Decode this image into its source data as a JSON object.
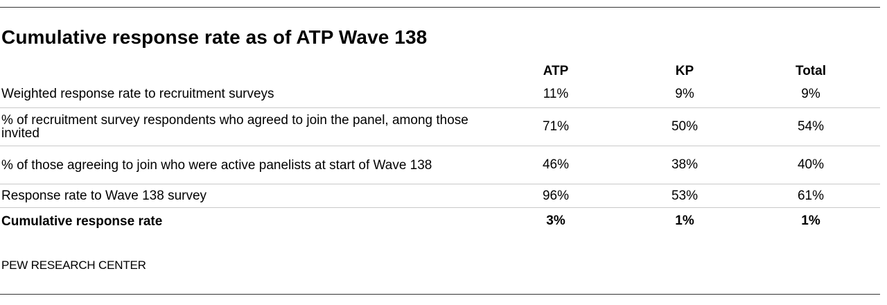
{
  "title": "Cumulative response rate as of ATP Wave 138",
  "columns": [
    "ATP",
    "KP",
    "Total"
  ],
  "rows": [
    {
      "label": "Weighted response rate to recruitment surveys",
      "atp": "11%",
      "kp": "9%",
      "total": "9%"
    },
    {
      "label": "% of recruitment survey respondents who agreed to join the panel, among those invited",
      "atp": "71%",
      "kp": "50%",
      "total": "54%"
    },
    {
      "label": "% of those agreeing to join who were active panelists at start of Wave 138",
      "atp": "46%",
      "kp": "38%",
      "total": "40%"
    },
    {
      "label": "Response rate to Wave 138 survey",
      "atp": "96%",
      "kp": "53%",
      "total": "61%"
    },
    {
      "label": "Cumulative response rate",
      "atp": "3%",
      "kp": "1%",
      "total": "1%"
    }
  ],
  "source": "PEW RESEARCH CENTER"
}
